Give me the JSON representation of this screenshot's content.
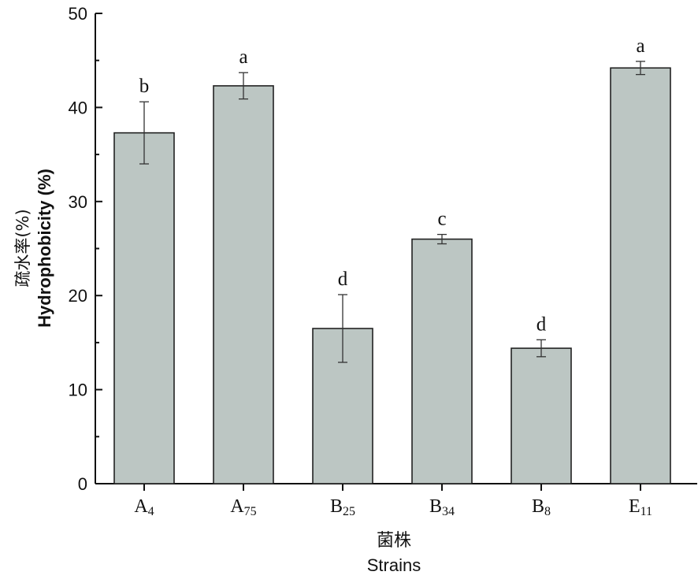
{
  "chart_data": {
    "type": "bar",
    "categories": [
      {
        "main": "A",
        "sub": "4"
      },
      {
        "main": "A",
        "sub": "75"
      },
      {
        "main": "B",
        "sub": "25"
      },
      {
        "main": "B",
        "sub": "34"
      },
      {
        "main": "B",
        "sub": "8"
      },
      {
        "main": "E",
        "sub": "11"
      }
    ],
    "values": [
      37.3,
      42.3,
      16.5,
      26.0,
      14.4,
      44.2
    ],
    "errors": [
      3.3,
      1.4,
      3.6,
      0.5,
      0.9,
      0.7
    ],
    "significance": [
      "b",
      "a",
      "d",
      "c",
      "d",
      "a"
    ],
    "xlabel_cn": "菌株",
    "xlabel": "Strains",
    "ylabel_cn": "疏水率(%)",
    "ylabel": "Hydrophobicity (%)",
    "ylim": [
      0,
      50
    ],
    "yticks": [
      0,
      10,
      20,
      30,
      40,
      50
    ],
    "bar_color": "#bcc6c3",
    "grid": false
  }
}
